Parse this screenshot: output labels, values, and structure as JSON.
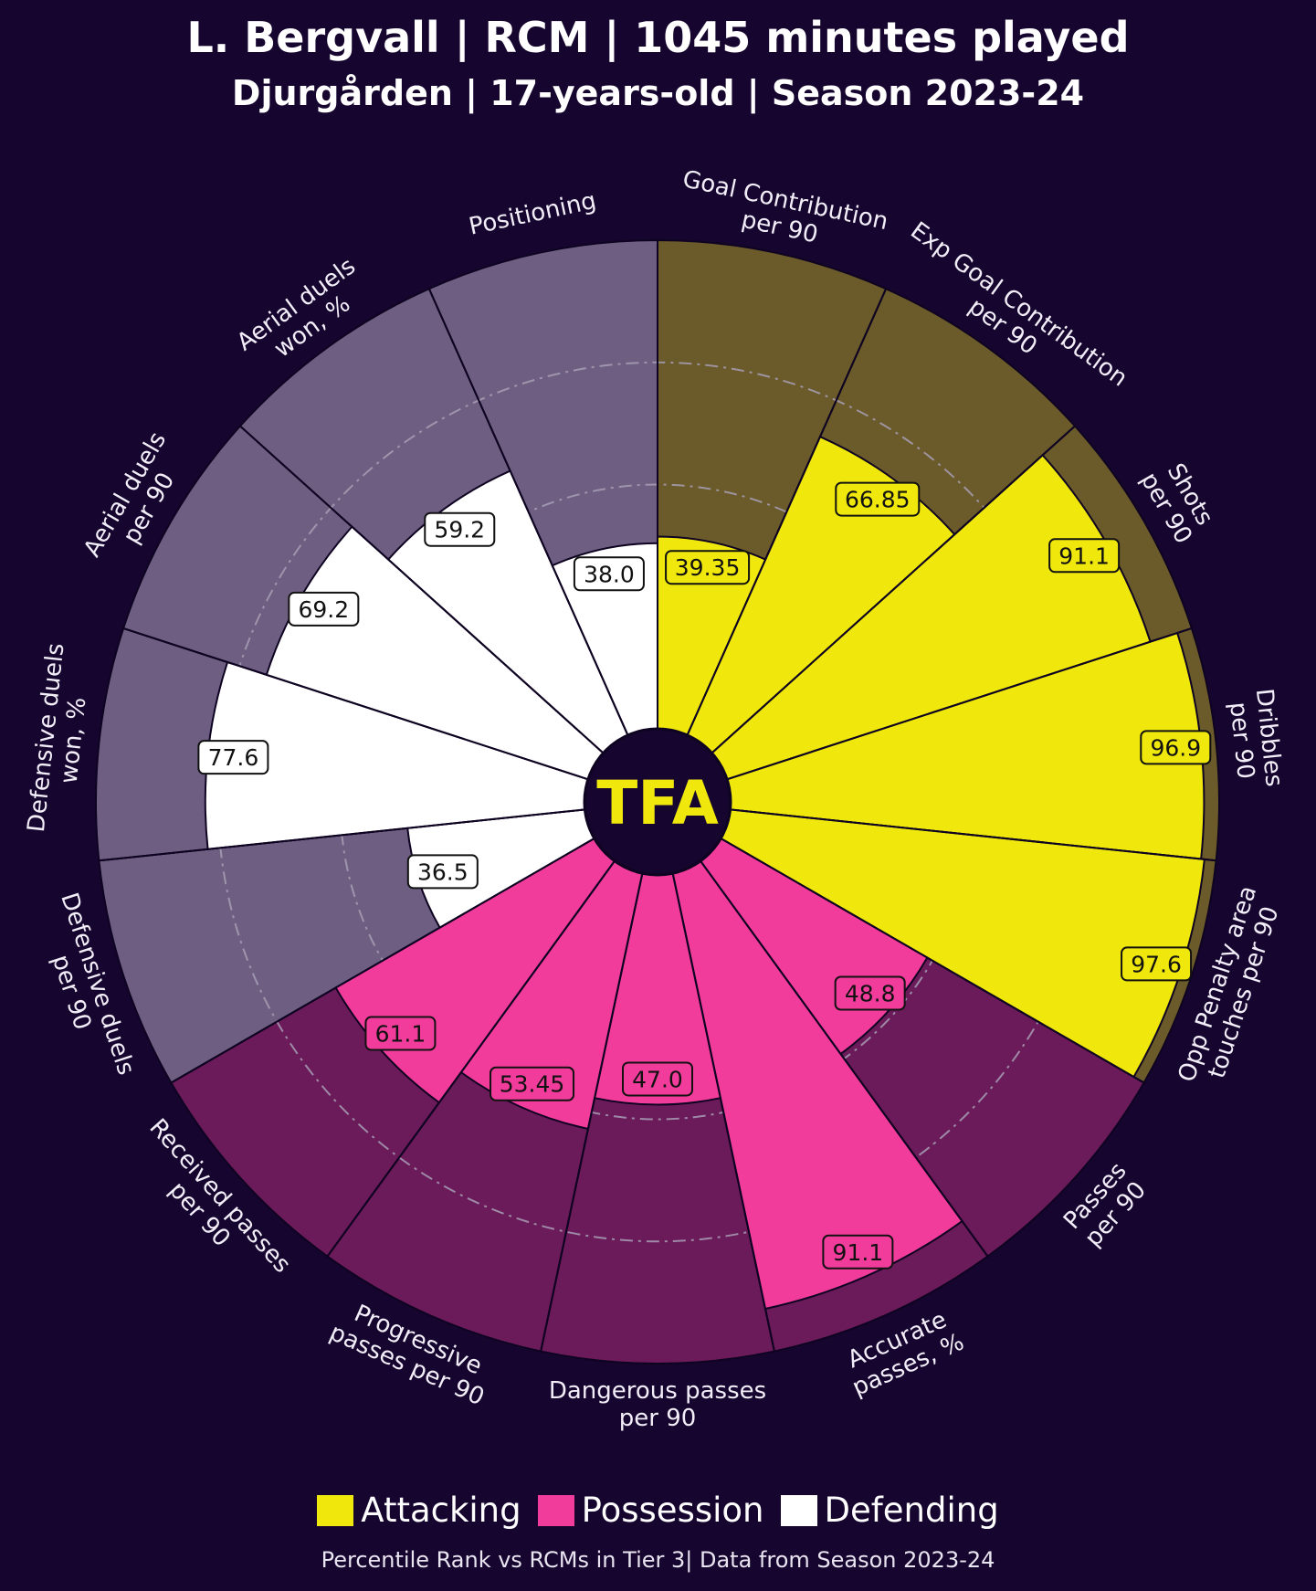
{
  "header": {
    "title": "L. Bergvall | RCM | 1045 minutes played",
    "subtitle": "Djurgården | 17-years-old | Season 2023-24"
  },
  "logo": {
    "text": "TFA"
  },
  "legend": [
    {
      "label": "Attacking",
      "color": "#f0e80c"
    },
    {
      "label": "Possession",
      "color": "#f23c9c"
    },
    {
      "label": "Defending",
      "color": "#ffffff"
    }
  ],
  "footnote": "Percentile Rank vs RCMs in Tier 3| Data from Season 2023-24",
  "colors": {
    "background": "#16052f",
    "attacking_fill": "#f0e80c",
    "attacking_bg": "#6b5a2a",
    "possession_fill": "#f23c9c",
    "possession_bg": "#6b1a5a",
    "defending_fill": "#ffffff",
    "defending_bg": "#6e5f82"
  },
  "chart_data": {
    "type": "pizza",
    "title": "L. Bergvall | RCM | 1045 minutes played",
    "subtitle": "Djurgården | 17-years-old | Season 2023-24",
    "value_range": [
      0,
      100
    ],
    "reference_rings": [
      25,
      50,
      75
    ],
    "params": [
      {
        "label": [
          "Goal Contribution",
          "per 90"
        ],
        "value": 39.35,
        "display": "39.35",
        "group": "Attacking"
      },
      {
        "label": [
          "Exp Goal Contribution",
          "per 90"
        ],
        "value": 66.85,
        "display": "66.85",
        "group": "Attacking"
      },
      {
        "label": [
          "Shots",
          "per 90"
        ],
        "value": 91.1,
        "display": "91.1",
        "group": "Attacking"
      },
      {
        "label": [
          "Dribbles",
          "per 90"
        ],
        "value": 96.9,
        "display": "96.9",
        "group": "Attacking"
      },
      {
        "label": [
          "Opp Penalty area",
          "touches per 90"
        ],
        "value": 97.6,
        "display": "97.6",
        "group": "Attacking"
      },
      {
        "label": [
          "Passes",
          "per 90"
        ],
        "value": 48.8,
        "display": "48.8",
        "group": "Possession"
      },
      {
        "label": [
          "Accurate",
          "passes, %"
        ],
        "value": 91.1,
        "display": "91.1",
        "group": "Possession"
      },
      {
        "label": [
          "Dangerous passes",
          "per 90"
        ],
        "value": 47.0,
        "display": "47.0",
        "group": "Possession"
      },
      {
        "label": [
          "Progressive",
          "passes per 90"
        ],
        "value": 53.45,
        "display": "53.45",
        "group": "Possession"
      },
      {
        "label": [
          "Received passes",
          "per 90"
        ],
        "value": 61.1,
        "display": "61.1",
        "group": "Possession"
      },
      {
        "label": [
          "Defensive duels",
          "per 90"
        ],
        "value": 36.5,
        "display": "36.5",
        "group": "Defending"
      },
      {
        "label": [
          "Defensive duels",
          "won, %"
        ],
        "value": 77.6,
        "display": "77.6",
        "group": "Defending"
      },
      {
        "label": [
          "Aerial duels",
          "per 90"
        ],
        "value": 69.2,
        "display": "69.2",
        "group": "Defending"
      },
      {
        "label": [
          "Aerial duels",
          "won, %"
        ],
        "value": 59.2,
        "display": "59.2",
        "group": "Defending"
      },
      {
        "label": [
          "Positioning"
        ],
        "value": 38.0,
        "display": "38.0",
        "group": "Defending"
      }
    ]
  }
}
